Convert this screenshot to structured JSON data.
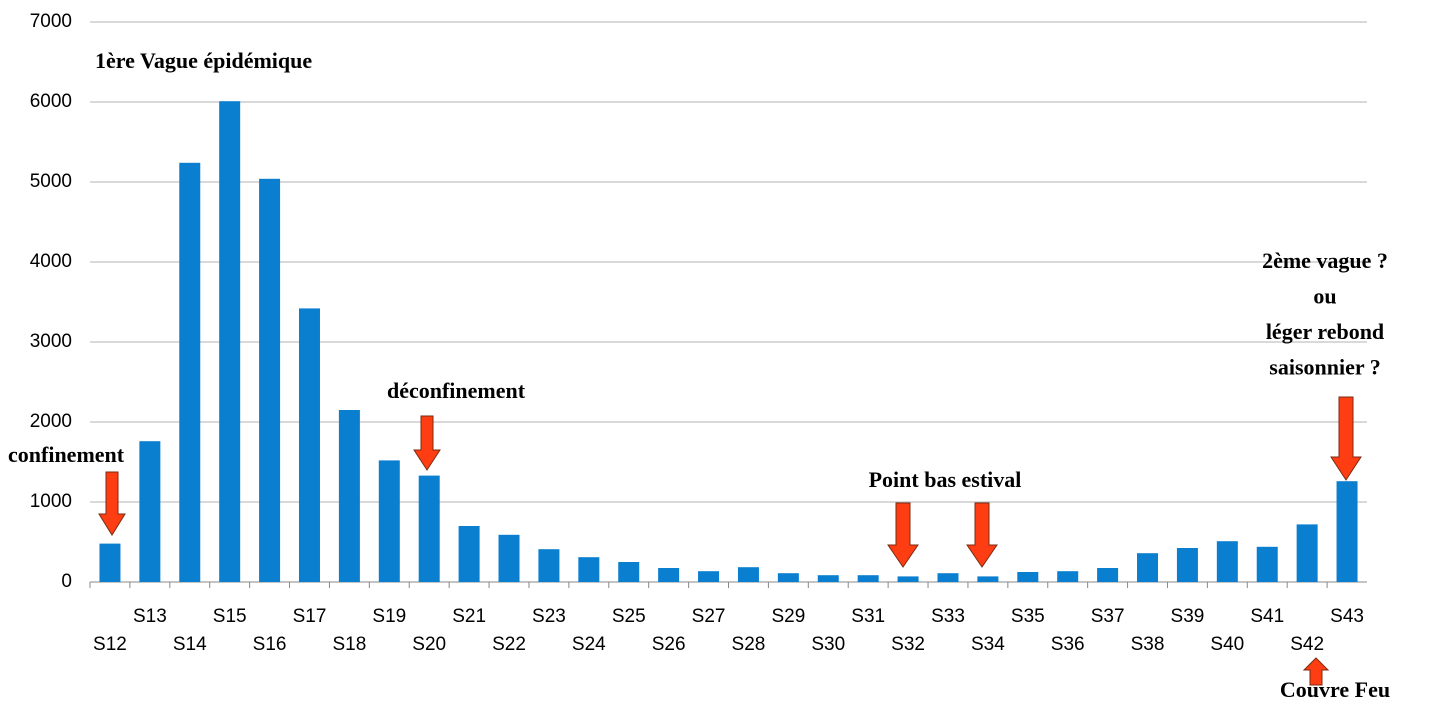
{
  "chart_data": {
    "type": "bar",
    "categories": [
      "S12",
      "S13",
      "S14",
      "S15",
      "S16",
      "S17",
      "S18",
      "S19",
      "S20",
      "S21",
      "S22",
      "S23",
      "S24",
      "S25",
      "S26",
      "S27",
      "S28",
      "S29",
      "S30",
      "S31",
      "S32",
      "S33",
      "S34",
      "S35",
      "S36",
      "S37",
      "S38",
      "S39",
      "S40",
      "S41",
      "S42",
      "S43"
    ],
    "values": [
      480,
      1760,
      5240,
      6010,
      5040,
      3420,
      2150,
      1520,
      1330,
      700,
      590,
      410,
      310,
      250,
      175,
      135,
      185,
      110,
      85,
      85,
      70,
      110,
      70,
      125,
      135,
      175,
      360,
      425,
      510,
      440,
      720,
      1260
    ],
    "color": "#0a7fd0",
    "ylim": [
      0,
      7000
    ],
    "yticks": [
      0,
      1000,
      2000,
      3000,
      4000,
      5000,
      6000,
      7000
    ],
    "grid": true,
    "annotations": [
      "1ère Vague épidémique",
      "confinement",
      "déconfinement",
      "Point bas estival",
      [
        "2ème vague ?",
        "ou",
        "léger rebond",
        "saisonnier ?"
      ],
      "Couvre Feu"
    ]
  }
}
